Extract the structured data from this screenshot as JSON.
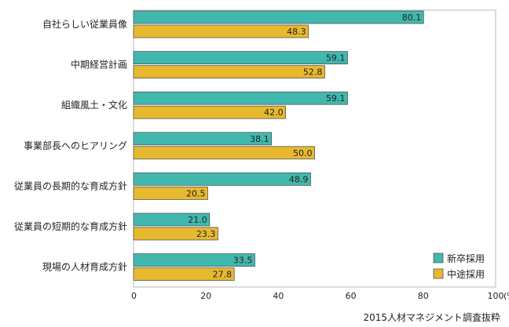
{
  "chart_data": {
    "type": "bar",
    "orientation": "horizontal",
    "categories": [
      "自社らしい従業員像",
      "中期経営計画",
      "組織風土・文化",
      "事業部長へのヒアリング",
      "従業員の長期的な育成方針",
      "従業員の短期的な育成方針",
      "現場の人材育成方針"
    ],
    "series": [
      {
        "name": "新卒採用",
        "color": "#41b8ae",
        "values": [
          80.1,
          59.1,
          59.1,
          38.1,
          48.9,
          21.0,
          33.5
        ]
      },
      {
        "name": "中途採用",
        "color": "#e6b92f",
        "values": [
          48.3,
          52.8,
          42.0,
          50.0,
          20.5,
          23.3,
          27.8
        ]
      }
    ],
    "value_labels": [
      [
        "80.1",
        "59.1",
        "59.1",
        "38.1",
        "48.9",
        "21.0",
        "33.5"
      ],
      [
        "48.3",
        "52.8",
        "42.0",
        "50.0",
        "20.5",
        "23.3",
        "27.8"
      ]
    ],
    "xlim": [
      0,
      100
    ],
    "xticks": [
      0,
      20,
      40,
      60,
      80,
      100
    ],
    "xtick_labels": [
      "0",
      "20",
      "40",
      "60",
      "80",
      "100"
    ],
    "x_unit": "(%)",
    "grid": false,
    "legend_position": "bottom-right",
    "source_note": "2015人材マネジメント調査抜粋"
  }
}
